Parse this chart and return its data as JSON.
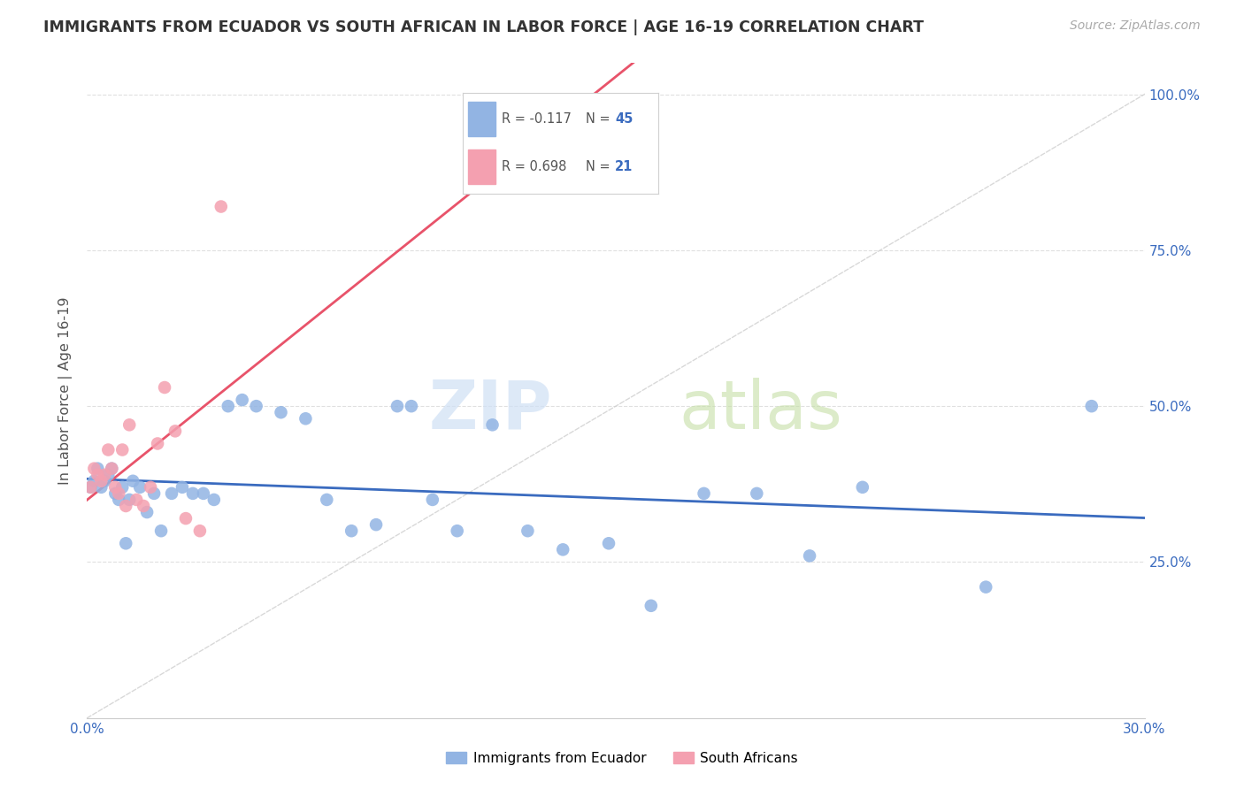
{
  "title": "IMMIGRANTS FROM ECUADOR VS SOUTH AFRICAN IN LABOR FORCE | AGE 16-19 CORRELATION CHART",
  "source": "Source: ZipAtlas.com",
  "ylabel": "In Labor Force | Age 16-19",
  "xmin": 0.0,
  "xmax": 0.3,
  "ymin": 0.0,
  "ymax": 1.05,
  "ytick_vals": [
    0.0,
    0.25,
    0.5,
    0.75,
    1.0
  ],
  "ytick_labels": [
    "",
    "25.0%",
    "50.0%",
    "75.0%",
    "100.0%"
  ],
  "xtick_vals": [
    0.0,
    0.05,
    0.1,
    0.15,
    0.2,
    0.25,
    0.3
  ],
  "xtick_labels": [
    "0.0%",
    "",
    "",
    "",
    "",
    "",
    "30.0%"
  ],
  "color_ecuador": "#92b4e3",
  "color_sa": "#f4a0b0",
  "color_line_ecuador": "#3a6bbf",
  "color_line_sa": "#e8536a",
  "color_diag": "#cccccc",
  "ecuador_x": [
    0.001,
    0.002,
    0.003,
    0.004,
    0.005,
    0.006,
    0.007,
    0.008,
    0.009,
    0.01,
    0.011,
    0.012,
    0.013,
    0.015,
    0.017,
    0.019,
    0.021,
    0.024,
    0.027,
    0.03,
    0.033,
    0.036,
    0.04,
    0.044,
    0.048,
    0.055,
    0.062,
    0.068,
    0.075,
    0.082,
    0.088,
    0.092,
    0.098,
    0.105,
    0.115,
    0.125,
    0.135,
    0.148,
    0.16,
    0.175,
    0.19,
    0.205,
    0.22,
    0.255,
    0.285
  ],
  "ecuador_y": [
    0.37,
    0.38,
    0.4,
    0.37,
    0.38,
    0.39,
    0.4,
    0.36,
    0.35,
    0.37,
    0.28,
    0.35,
    0.38,
    0.37,
    0.33,
    0.36,
    0.3,
    0.36,
    0.37,
    0.36,
    0.36,
    0.35,
    0.5,
    0.51,
    0.5,
    0.49,
    0.48,
    0.35,
    0.3,
    0.31,
    0.5,
    0.5,
    0.35,
    0.3,
    0.47,
    0.3,
    0.27,
    0.28,
    0.18,
    0.36,
    0.36,
    0.26,
    0.37,
    0.21,
    0.5
  ],
  "sa_x": [
    0.001,
    0.002,
    0.003,
    0.004,
    0.005,
    0.006,
    0.007,
    0.008,
    0.009,
    0.01,
    0.011,
    0.012,
    0.014,
    0.016,
    0.018,
    0.02,
    0.022,
    0.025,
    0.028,
    0.032,
    0.038
  ],
  "sa_y": [
    0.37,
    0.4,
    0.39,
    0.38,
    0.39,
    0.43,
    0.4,
    0.37,
    0.36,
    0.43,
    0.34,
    0.47,
    0.35,
    0.34,
    0.37,
    0.44,
    0.53,
    0.46,
    0.32,
    0.3,
    0.82
  ],
  "background_color": "#ffffff",
  "grid_color": "#e0e0e0"
}
